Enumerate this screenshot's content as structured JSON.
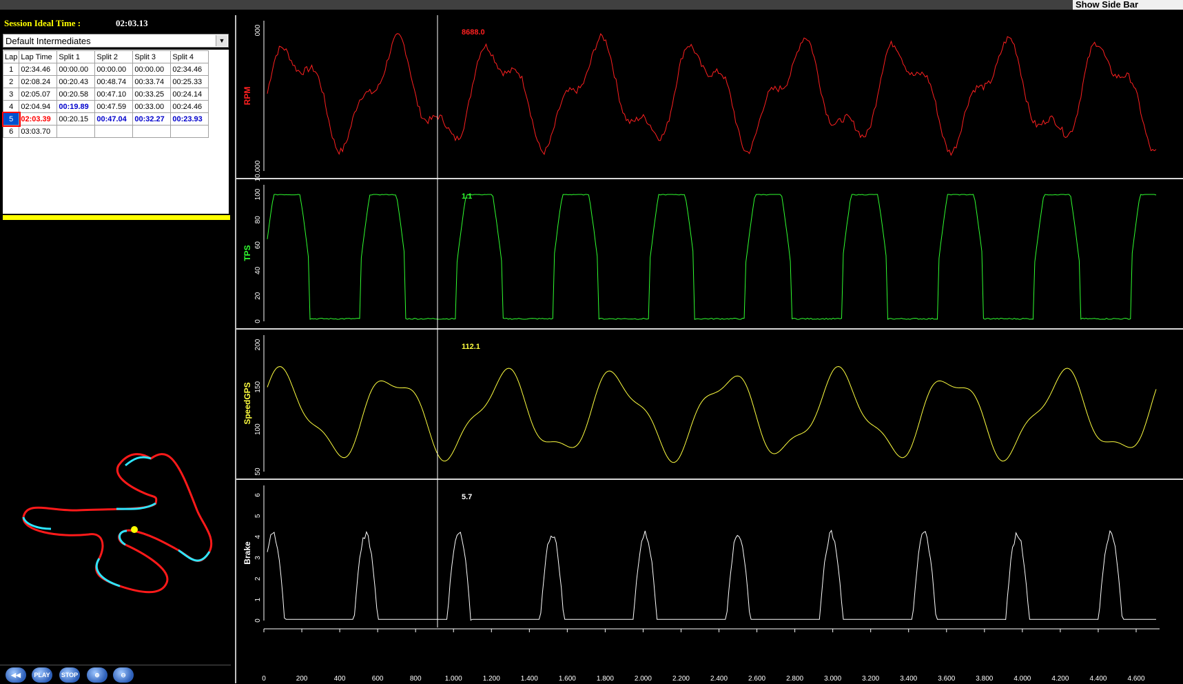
{
  "toolbar": {
    "show_side_bar": "Show Side Bar"
  },
  "session": {
    "label": "Session Ideal Time :",
    "value": "02:03.13"
  },
  "intermediates": {
    "selected": "Default Intermediates"
  },
  "lap_table": {
    "headers": [
      "Lap",
      "Lap Time",
      "Split 1",
      "Split 2",
      "Split 3",
      "Split 4"
    ],
    "rows": [
      {
        "lap": "1",
        "time": "02:34.46",
        "s1": "00:00.00",
        "s2": "00:00.00",
        "s3": "00:00.00",
        "s4": "02:34.46"
      },
      {
        "lap": "2",
        "time": "02:08.24",
        "s1": "00:20.43",
        "s2": "00:48.74",
        "s3": "00:33.74",
        "s4": "00:25.33"
      },
      {
        "lap": "3",
        "time": "02:05.07",
        "s1": "00:20.58",
        "s2": "00:47.10",
        "s3": "00:33.25",
        "s4": "00:24.14"
      },
      {
        "lap": "4",
        "time": "02:04.94",
        "s1": "00:19.89",
        "s2": "00:47.59",
        "s3": "00:33.00",
        "s4": "00:24.46"
      },
      {
        "lap": "5",
        "time": "02:03.39",
        "s1": "00:20.15",
        "s2": "00:47.04",
        "s3": "00:32.27",
        "s4": "00:23.93"
      },
      {
        "lap": "6",
        "time": "03:03.70",
        "s1": "",
        "s2": "",
        "s3": "",
        "s4": ""
      }
    ],
    "selected_lap": "5",
    "best_color": "#0000cc",
    "selected_color": "#ff0000"
  },
  "controls": {
    "rewind": "",
    "play": "PLAY",
    "stop": "STOP",
    "zoom_in": "",
    "zoom_out": ""
  },
  "channels": {
    "rpm": {
      "label": "RPM",
      "cursor_value": "8688.0",
      "color": "#ff2020",
      "ticks": [
        "10.000",
        "000"
      ]
    },
    "tps": {
      "label": "TPS",
      "cursor_value": "1.1",
      "color": "#30ff30",
      "ticks": [
        "0",
        "20",
        "40",
        "60",
        "80",
        "100"
      ]
    },
    "speed": {
      "label": "SpeedGPS",
      "cursor_value": "112.1",
      "color": "#ffff40",
      "ticks": [
        "50",
        "100",
        "150",
        "200"
      ]
    },
    "brake": {
      "label": "Brake",
      "cursor_value": "5.7",
      "color": "#ffffff",
      "ticks": [
        "0",
        "1",
        "2",
        "3",
        "4",
        "5",
        "6"
      ]
    }
  },
  "x_axis": {
    "ticks": [
      "0",
      "200",
      "400",
      "600",
      "800",
      "1.000",
      "1.200",
      "1.400",
      "1.600",
      "1.800",
      "2.000",
      "2.200",
      "2.400",
      "2.600",
      "2.800",
      "3.000",
      "3.200",
      "3.400",
      "3.600",
      "3.800",
      "4.000",
      "4.200",
      "4.400",
      "4.600"
    ]
  }
}
